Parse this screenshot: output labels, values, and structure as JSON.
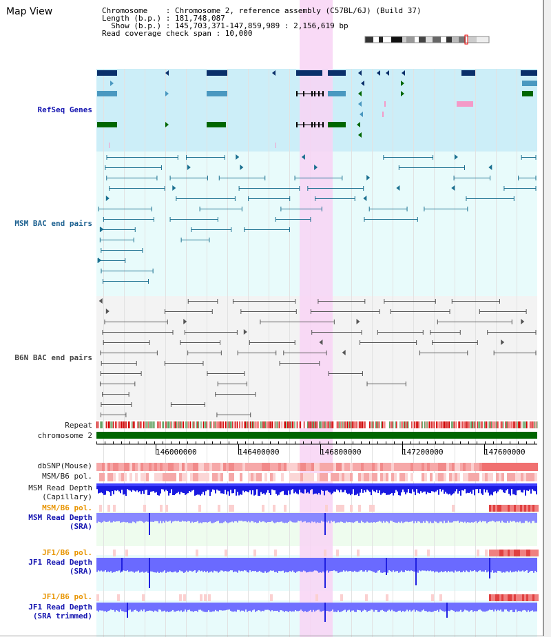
{
  "app": {
    "title": "Map View"
  },
  "header": {
    "line1": "Chromosome    : Chromosome 2, reference assembly (C57BL/6J) (Build 37)",
    "line2": "Length (b.p.) : 181,748,087",
    "line3": "  Show (b.p.) : 145,703,371-147,859,989 : 2,156,619 bp",
    "line4": "Read coverage check span : 10,000"
  },
  "tracks": {
    "refseq": "RefSeq Genes",
    "msm_bac": "MSM BAC end pairs",
    "b6n_bac": "B6N BAC end pairs",
    "repeat": "Repeat",
    "chromosome": "chromosome 2",
    "dbsnp": "dbSNP(Mouse)",
    "msm_b6_pol": "MSM/B6 pol.",
    "msm_read_depth_cap_1": "MSM Read Depth",
    "msm_read_depth_cap_2": "(Capillary)",
    "msm_b6_pol_sra": "MSM/B6 pol.",
    "msm_read_depth_sra_1": "MSM Read Depth",
    "msm_read_depth_sra_2": "(SRA)",
    "jf1_b6_pol": "JF1/B6 pol.",
    "jf1_read_depth_1": "JF1 Read Depth",
    "jf1_read_depth_2": "(SRA)",
    "jf1_b6_pol_trim": "JF1/B6 pol.",
    "jf1_read_depth_trim_1": "JF1 Read Depth",
    "jf1_read_depth_trim_2": "(SRA trimmed)"
  },
  "axis": {
    "ticks": [
      "146000000",
      "146400000",
      "146800000",
      "147200000",
      "147600000"
    ]
  },
  "colors": {
    "refseq_bg": "#cceef8",
    "msm_bg": "#e8fbfb",
    "b6n_bg": "#f3f3f3",
    "highlight": "#f8d4f4",
    "chromosome": "#006600",
    "gene_dark": "#0a2f6a",
    "gene_mid": "#4a98c0",
    "gene_green": "#006600",
    "pink_gene": "#f49ac8",
    "bac_teal": "#1a6f8f",
    "bac_gray": "#555555",
    "depth": "#2020e0",
    "depth_light": "#8080ff"
  }
}
